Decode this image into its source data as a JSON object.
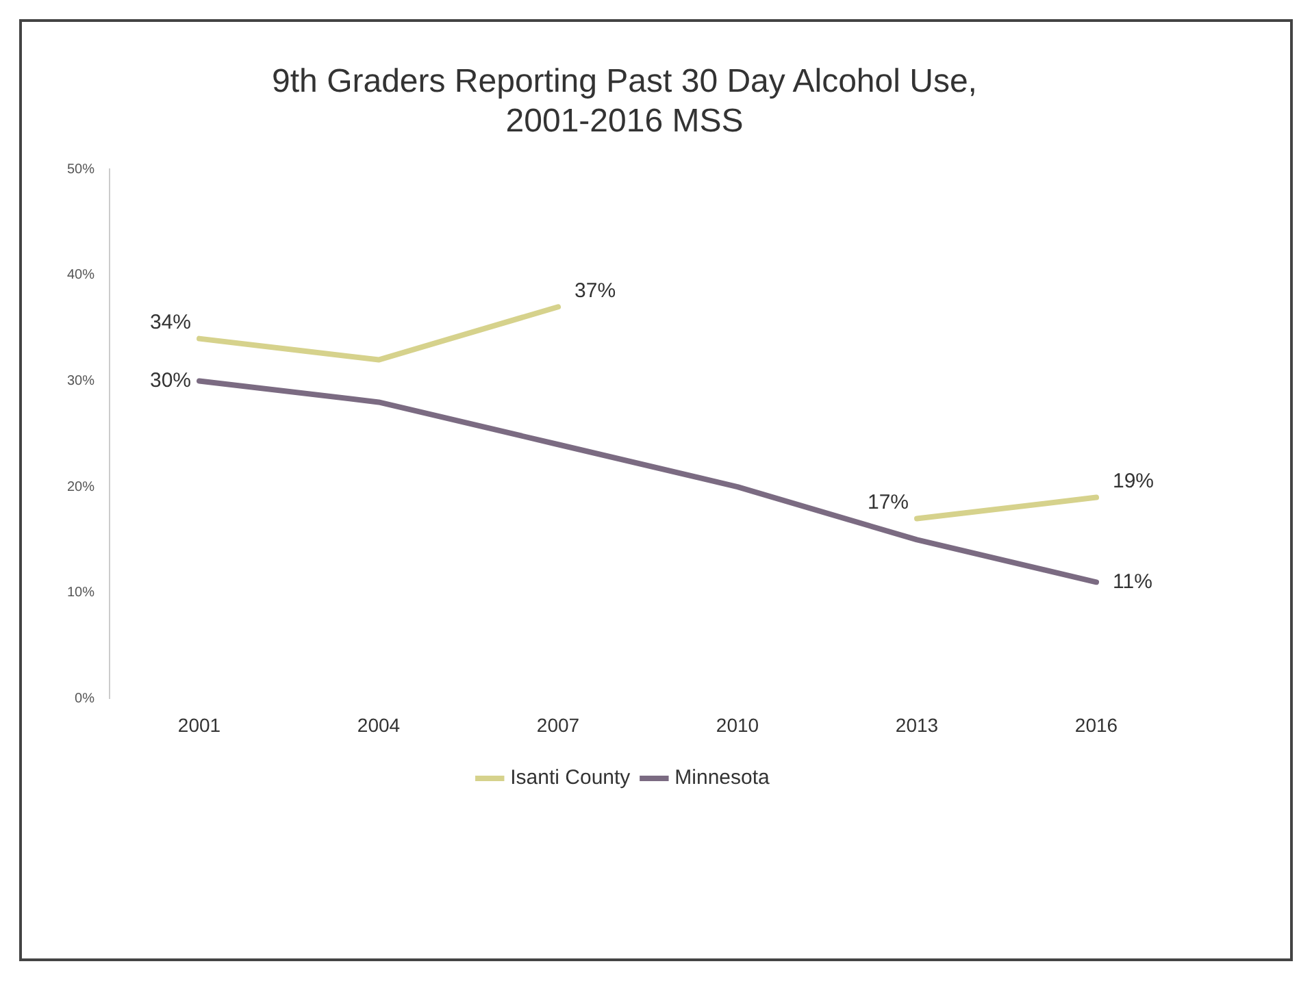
{
  "chart_data": {
    "type": "line",
    "title": "9th Graders Reporting Past 30 Day Alcohol Use,\n2001-2016 MSS",
    "categories": [
      "2001",
      "2004",
      "2007",
      "2010",
      "2013",
      "2016"
    ],
    "series": [
      {
        "name": "Isanti County",
        "color": "#d6d28c",
        "values": [
          34,
          32,
          37,
          null,
          17,
          19
        ],
        "value_labels": [
          "34%",
          null,
          "37%",
          null,
          "17%",
          "19%"
        ]
      },
      {
        "name": "Minnesota",
        "color": "#7b6b82",
        "values": [
          30,
          28,
          24,
          20,
          15,
          11
        ],
        "value_labels": [
          "30%",
          null,
          null,
          null,
          null,
          "11%"
        ]
      }
    ],
    "ylim": [
      0,
      50
    ],
    "yticks": [
      {
        "value": 0,
        "label": "0%"
      },
      {
        "value": 10,
        "label": "10%"
      },
      {
        "value": 20,
        "label": "20%"
      },
      {
        "value": 30,
        "label": "30%"
      },
      {
        "value": 40,
        "label": "40%"
      },
      {
        "value": 50,
        "label": "50%"
      }
    ],
    "grid": false,
    "legend": "bottom",
    "marker": "none",
    "line_style": "solid"
  }
}
